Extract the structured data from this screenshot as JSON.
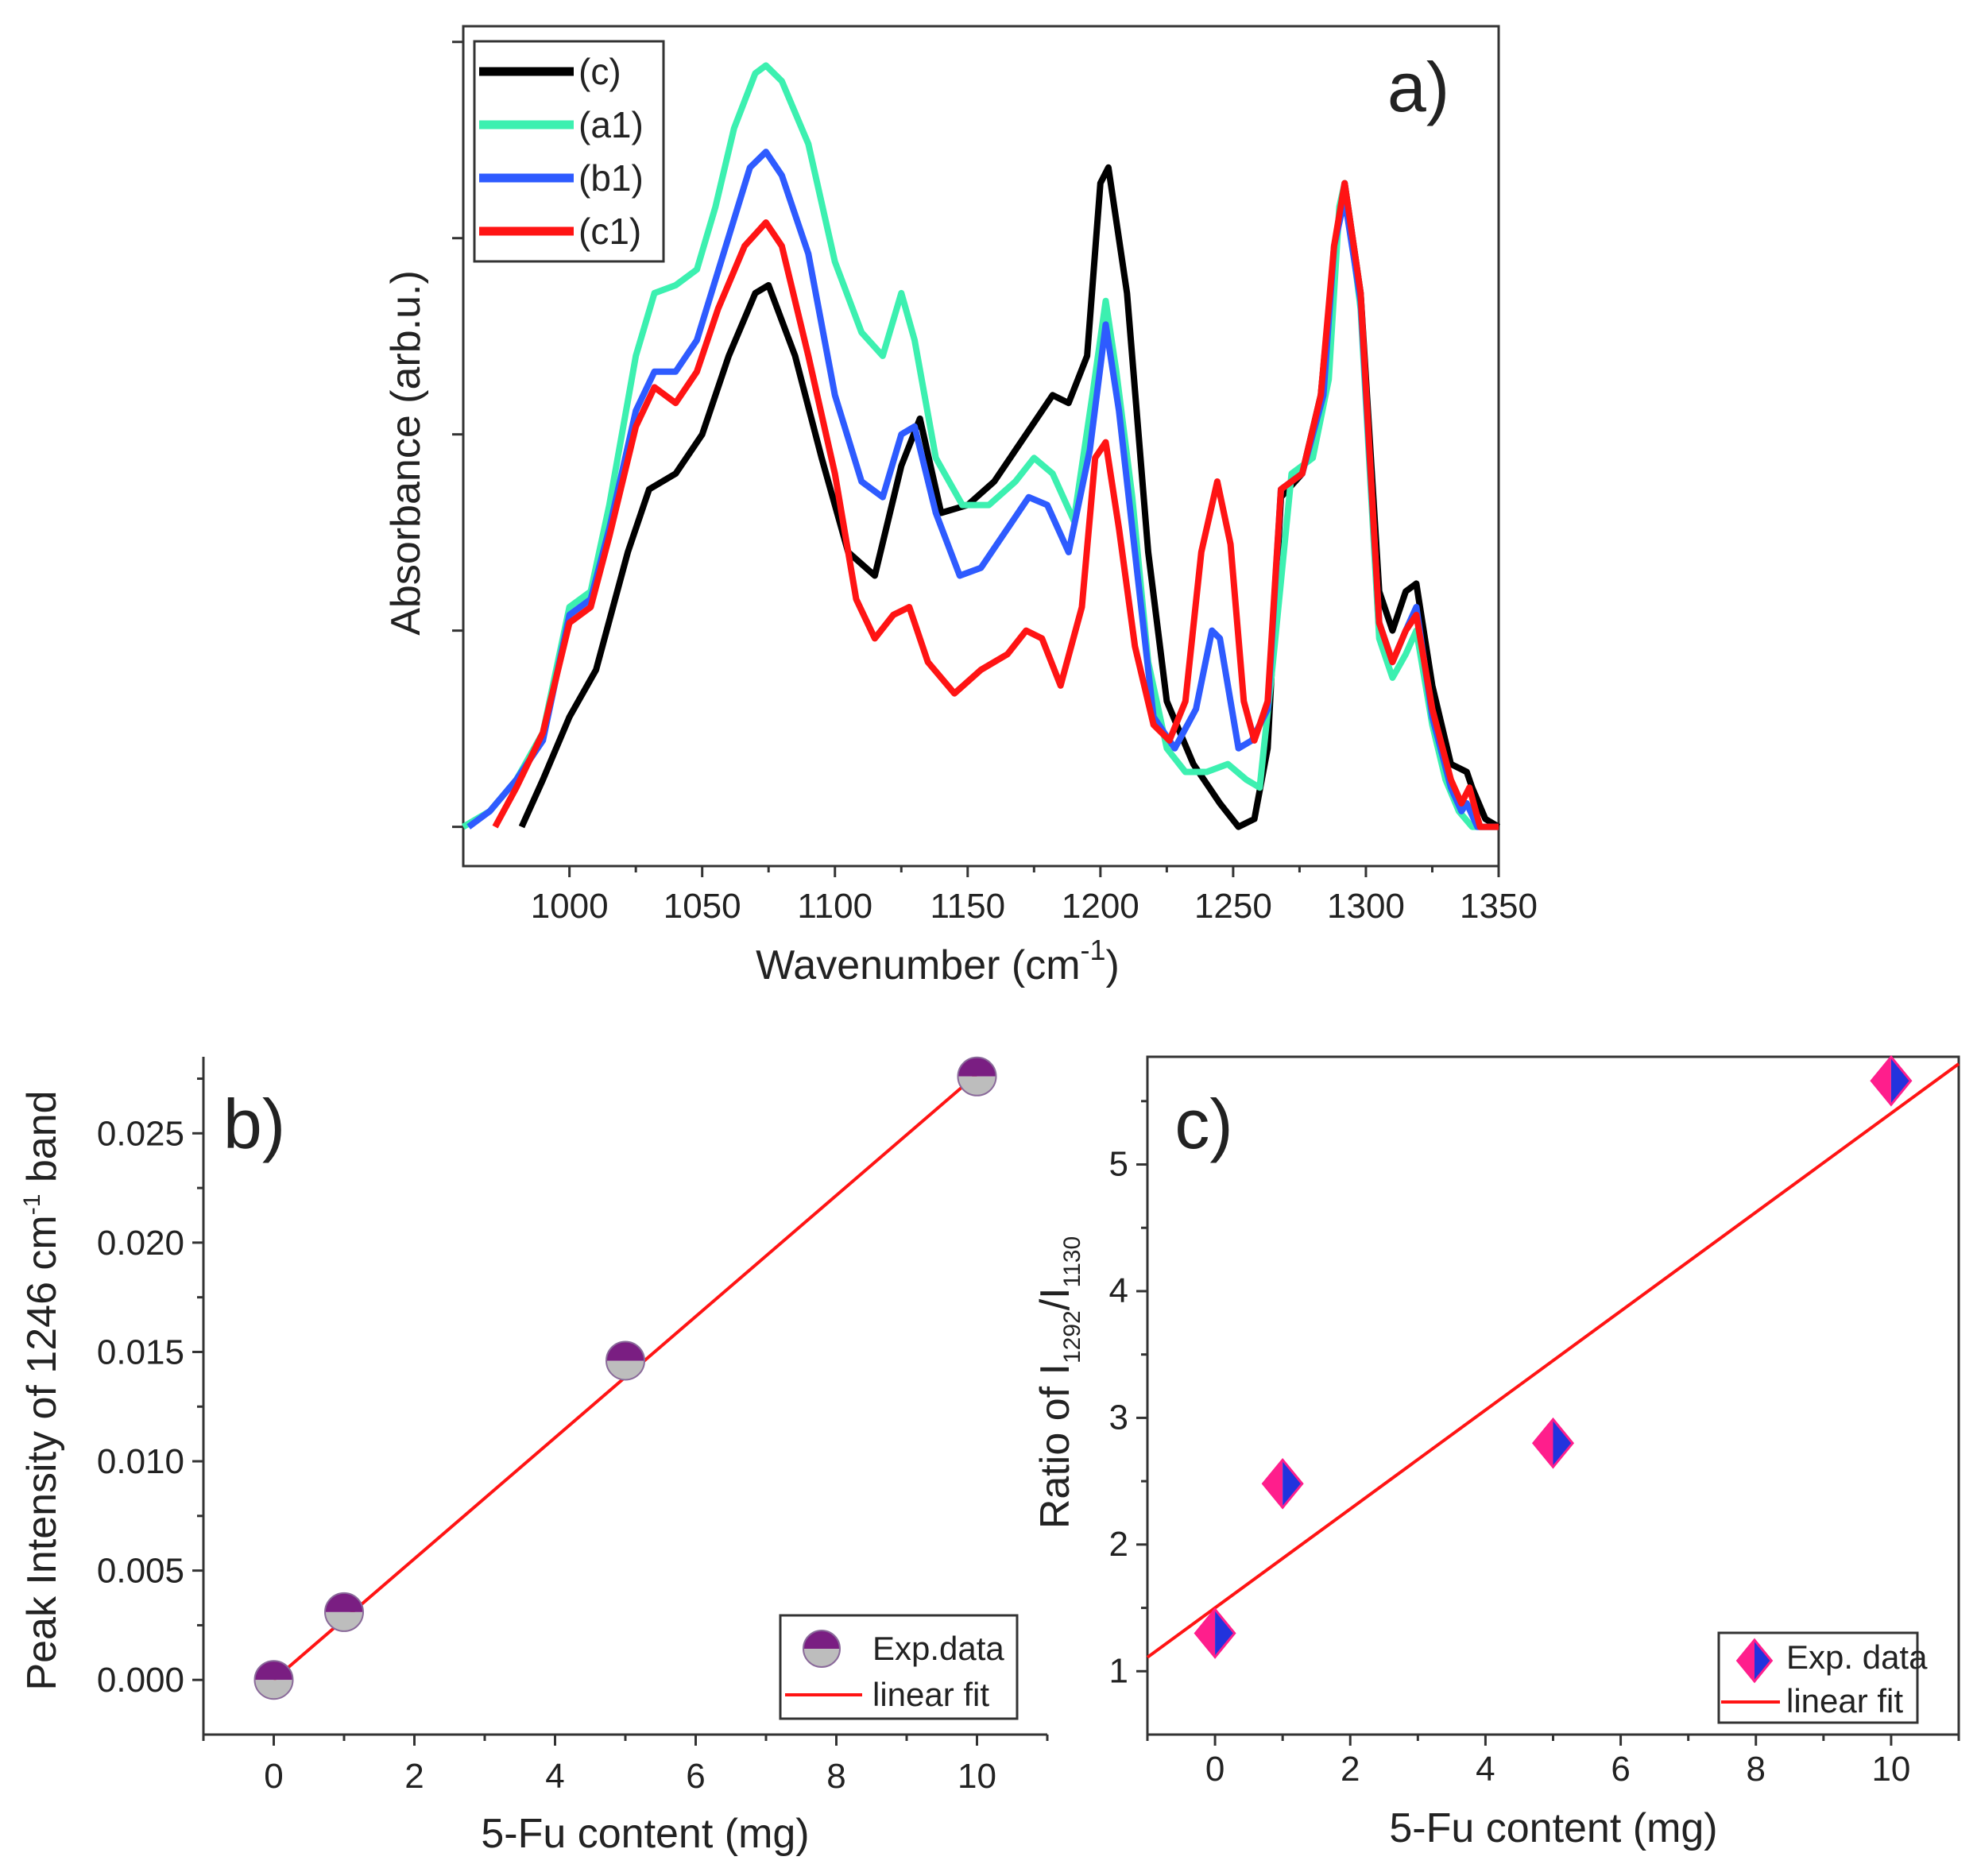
{
  "colors": {
    "c": "#000000",
    "a1": "#3CF0B0",
    "b1": "#2E5BFF",
    "c1": "#FF1414",
    "fit": "#FF1414",
    "marker_top": "#7A1E82",
    "marker_bottom": "#BDBDBD",
    "diamond_left": "#FF1E8C",
    "diamond_right": "#2233DD"
  },
  "chart_data": [
    {
      "panel": "a)",
      "type": "line",
      "xlabel": "Wavenumber (cm",
      "xlabel_sup": "-1",
      "xlabel_close": ")",
      "ylabel": "Absorbance (arb.u.)",
      "xlim": [
        960,
        1350
      ],
      "ylim": [
        -0.05,
        1.02
      ],
      "xticks": [
        1000,
        1050,
        1100,
        1150,
        1200,
        1250,
        1300,
        1350
      ],
      "yticks_unlabeled": [
        0,
        0.25,
        0.5,
        0.75,
        1.0
      ],
      "legend": [
        "(c)",
        "(a1)",
        "(b1)",
        "(c1)"
      ],
      "series": [
        {
          "name": "(c)",
          "key": "c",
          "points": [
            [
              982,
              0.0
            ],
            [
              990,
              0.06
            ],
            [
              1000,
              0.14
            ],
            [
              1010,
              0.2
            ],
            [
              1022,
              0.35
            ],
            [
              1030,
              0.43
            ],
            [
              1040,
              0.45
            ],
            [
              1050,
              0.5
            ],
            [
              1060,
              0.6
            ],
            [
              1070,
              0.68
            ],
            [
              1075,
              0.69
            ],
            [
              1085,
              0.6
            ],
            [
              1095,
              0.47
            ],
            [
              1105,
              0.35
            ],
            [
              1115,
              0.32
            ],
            [
              1125,
              0.46
            ],
            [
              1132,
              0.52
            ],
            [
              1140,
              0.4
            ],
            [
              1150,
              0.41
            ],
            [
              1160,
              0.44
            ],
            [
              1172,
              0.5
            ],
            [
              1182,
              0.55
            ],
            [
              1188,
              0.54
            ],
            [
              1195,
              0.6
            ],
            [
              1200,
              0.82
            ],
            [
              1203,
              0.84
            ],
            [
              1210,
              0.68
            ],
            [
              1218,
              0.35
            ],
            [
              1225,
              0.16
            ],
            [
              1235,
              0.08
            ],
            [
              1245,
              0.03
            ],
            [
              1252,
              0.0
            ],
            [
              1258,
              0.01
            ],
            [
              1263,
              0.1
            ],
            [
              1268,
              0.42
            ],
            [
              1276,
              0.45
            ],
            [
              1283,
              0.55
            ],
            [
              1288,
              0.73
            ],
            [
              1292,
              0.82
            ],
            [
              1298,
              0.68
            ],
            [
              1305,
              0.3
            ],
            [
              1310,
              0.25
            ],
            [
              1315,
              0.3
            ],
            [
              1319,
              0.31
            ],
            [
              1325,
              0.18
            ],
            [
              1332,
              0.08
            ],
            [
              1338,
              0.07
            ],
            [
              1340,
              0.05
            ],
            [
              1345,
              0.01
            ],
            [
              1350,
              0.0
            ]
          ]
        },
        {
          "name": "(a1)",
          "key": "a1",
          "points": [
            [
              960,
              0.0
            ],
            [
              970,
              0.02
            ],
            [
              980,
              0.06
            ],
            [
              990,
              0.12
            ],
            [
              1000,
              0.28
            ],
            [
              1008,
              0.3
            ],
            [
              1015,
              0.41
            ],
            [
              1025,
              0.6
            ],
            [
              1032,
              0.68
            ],
            [
              1040,
              0.69
            ],
            [
              1048,
              0.71
            ],
            [
              1055,
              0.79
            ],
            [
              1062,
              0.89
            ],
            [
              1070,
              0.96
            ],
            [
              1074,
              0.97
            ],
            [
              1080,
              0.95
            ],
            [
              1090,
              0.87
            ],
            [
              1100,
              0.72
            ],
            [
              1110,
              0.63
            ],
            [
              1118,
              0.6
            ],
            [
              1125,
              0.68
            ],
            [
              1130,
              0.62
            ],
            [
              1138,
              0.47
            ],
            [
              1148,
              0.41
            ],
            [
              1158,
              0.41
            ],
            [
              1168,
              0.44
            ],
            [
              1175,
              0.47
            ],
            [
              1182,
              0.45
            ],
            [
              1190,
              0.39
            ],
            [
              1197,
              0.55
            ],
            [
              1202,
              0.67
            ],
            [
              1206,
              0.58
            ],
            [
              1212,
              0.42
            ],
            [
              1218,
              0.21
            ],
            [
              1225,
              0.1
            ],
            [
              1232,
              0.07
            ],
            [
              1240,
              0.07
            ],
            [
              1248,
              0.08
            ],
            [
              1255,
              0.06
            ],
            [
              1260,
              0.05
            ],
            [
              1265,
              0.21
            ],
            [
              1272,
              0.45
            ],
            [
              1280,
              0.47
            ],
            [
              1286,
              0.57
            ],
            [
              1290,
              0.79
            ],
            [
              1292,
              0.82
            ],
            [
              1298,
              0.66
            ],
            [
              1305,
              0.24
            ],
            [
              1310,
              0.19
            ],
            [
              1315,
              0.22
            ],
            [
              1319,
              0.25
            ],
            [
              1325,
              0.13
            ],
            [
              1330,
              0.06
            ],
            [
              1335,
              0.02
            ],
            [
              1340,
              0.0
            ],
            [
              1350,
              0.0
            ]
          ]
        },
        {
          "name": "(b1)",
          "key": "b1",
          "points": [
            [
              962,
              0.0
            ],
            [
              970,
              0.02
            ],
            [
              980,
              0.06
            ],
            [
              990,
              0.11
            ],
            [
              1000,
              0.27
            ],
            [
              1008,
              0.29
            ],
            [
              1015,
              0.38
            ],
            [
              1025,
              0.53
            ],
            [
              1032,
              0.58
            ],
            [
              1040,
              0.58
            ],
            [
              1048,
              0.62
            ],
            [
              1058,
              0.73
            ],
            [
              1068,
              0.84
            ],
            [
              1074,
              0.86
            ],
            [
              1080,
              0.83
            ],
            [
              1090,
              0.73
            ],
            [
              1100,
              0.55
            ],
            [
              1110,
              0.44
            ],
            [
              1118,
              0.42
            ],
            [
              1125,
              0.5
            ],
            [
              1130,
              0.51
            ],
            [
              1138,
              0.4
            ],
            [
              1147,
              0.32
            ],
            [
              1155,
              0.33
            ],
            [
              1165,
              0.38
            ],
            [
              1173,
              0.42
            ],
            [
              1180,
              0.41
            ],
            [
              1188,
              0.35
            ],
            [
              1196,
              0.48
            ],
            [
              1202,
              0.64
            ],
            [
              1207,
              0.53
            ],
            [
              1213,
              0.35
            ],
            [
              1220,
              0.14
            ],
            [
              1228,
              0.1
            ],
            [
              1236,
              0.15
            ],
            [
              1242,
              0.25
            ],
            [
              1245,
              0.24
            ],
            [
              1252,
              0.1
            ],
            [
              1257,
              0.11
            ],
            [
              1263,
              0.15
            ],
            [
              1268,
              0.43
            ],
            [
              1276,
              0.45
            ],
            [
              1284,
              0.55
            ],
            [
              1288,
              0.74
            ],
            [
              1292,
              0.8
            ],
            [
              1298,
              0.67
            ],
            [
              1305,
              0.26
            ],
            [
              1310,
              0.21
            ],
            [
              1315,
              0.25
            ],
            [
              1319,
              0.28
            ],
            [
              1325,
              0.14
            ],
            [
              1332,
              0.05
            ],
            [
              1336,
              0.02
            ],
            [
              1338,
              0.03
            ],
            [
              1342,
              0.0
            ],
            [
              1350,
              0.0
            ]
          ]
        },
        {
          "name": "(c1)",
          "key": "c1",
          "points": [
            [
              972,
              0.0
            ],
            [
              980,
              0.05
            ],
            [
              990,
              0.12
            ],
            [
              1000,
              0.26
            ],
            [
              1008,
              0.28
            ],
            [
              1015,
              0.37
            ],
            [
              1025,
              0.51
            ],
            [
              1032,
              0.56
            ],
            [
              1040,
              0.54
            ],
            [
              1048,
              0.58
            ],
            [
              1056,
              0.66
            ],
            [
              1066,
              0.74
            ],
            [
              1074,
              0.77
            ],
            [
              1080,
              0.74
            ],
            [
              1090,
              0.6
            ],
            [
              1100,
              0.45
            ],
            [
              1108,
              0.29
            ],
            [
              1115,
              0.24
            ],
            [
              1122,
              0.27
            ],
            [
              1128,
              0.28
            ],
            [
              1135,
              0.21
            ],
            [
              1145,
              0.17
            ],
            [
              1155,
              0.2
            ],
            [
              1165,
              0.22
            ],
            [
              1172,
              0.25
            ],
            [
              1178,
              0.24
            ],
            [
              1185,
              0.18
            ],
            [
              1193,
              0.28
            ],
            [
              1198,
              0.47
            ],
            [
              1202,
              0.49
            ],
            [
              1207,
              0.38
            ],
            [
              1213,
              0.23
            ],
            [
              1220,
              0.13
            ],
            [
              1226,
              0.11
            ],
            [
              1232,
              0.16
            ],
            [
              1238,
              0.35
            ],
            [
              1244,
              0.44
            ],
            [
              1249,
              0.36
            ],
            [
              1254,
              0.16
            ],
            [
              1258,
              0.11
            ],
            [
              1263,
              0.16
            ],
            [
              1268,
              0.43
            ],
            [
              1276,
              0.45
            ],
            [
              1283,
              0.55
            ],
            [
              1288,
              0.74
            ],
            [
              1292,
              0.82
            ],
            [
              1298,
              0.68
            ],
            [
              1305,
              0.26
            ],
            [
              1310,
              0.21
            ],
            [
              1315,
              0.25
            ],
            [
              1319,
              0.27
            ],
            [
              1325,
              0.15
            ],
            [
              1332,
              0.06
            ],
            [
              1336,
              0.03
            ],
            [
              1339,
              0.05
            ],
            [
              1343,
              0.0
            ],
            [
              1350,
              0.0
            ]
          ]
        }
      ]
    },
    {
      "panel": "b)",
      "type": "scatter",
      "xlabel": "5-Fu content (mg)",
      "ylabel": "Peak Intensity of 1246 cm",
      "ylabel_sup": "-1",
      "ylabel_end": " band",
      "xlim": [
        -1,
        11
      ],
      "ylim": [
        -0.0025,
        0.0285
      ],
      "xticks": [
        0,
        2,
        4,
        6,
        8,
        10
      ],
      "yticks": [
        "0.000",
        "0.005",
        "0.010",
        "0.015",
        "0.020",
        "0.025"
      ],
      "legend": [
        "Exp.data",
        "linear fit"
      ],
      "x": [
        0,
        1,
        5,
        10
      ],
      "y": [
        0.0,
        0.0031,
        0.0146,
        0.0276
      ],
      "fit": {
        "slope": 0.00277,
        "intercept": 0.0,
        "x_range": [
          0,
          10
        ]
      }
    },
    {
      "panel": "c)",
      "type": "scatter",
      "xlabel": "5-Fu content (mg)",
      "ylabel": "Ratio of I",
      "ylabel_sub1": "1292",
      "ylabel_mid": "/I",
      "ylabel_sub2": "1130",
      "xlim": [
        -1,
        11
      ],
      "ylim": [
        0.5,
        5.85
      ],
      "xticks": [
        0,
        2,
        4,
        6,
        8,
        10
      ],
      "yticks": [
        "1",
        "2",
        "3",
        "4",
        "5"
      ],
      "legend": [
        "Exp. data",
        "linear fit"
      ],
      "x": [
        0,
        1,
        5,
        10
      ],
      "y": [
        1.3,
        2.48,
        2.8,
        5.66
      ],
      "fit": {
        "slope": 0.3904,
        "intercept": 1.5,
        "x_range": [
          -1,
          11
        ]
      }
    }
  ]
}
